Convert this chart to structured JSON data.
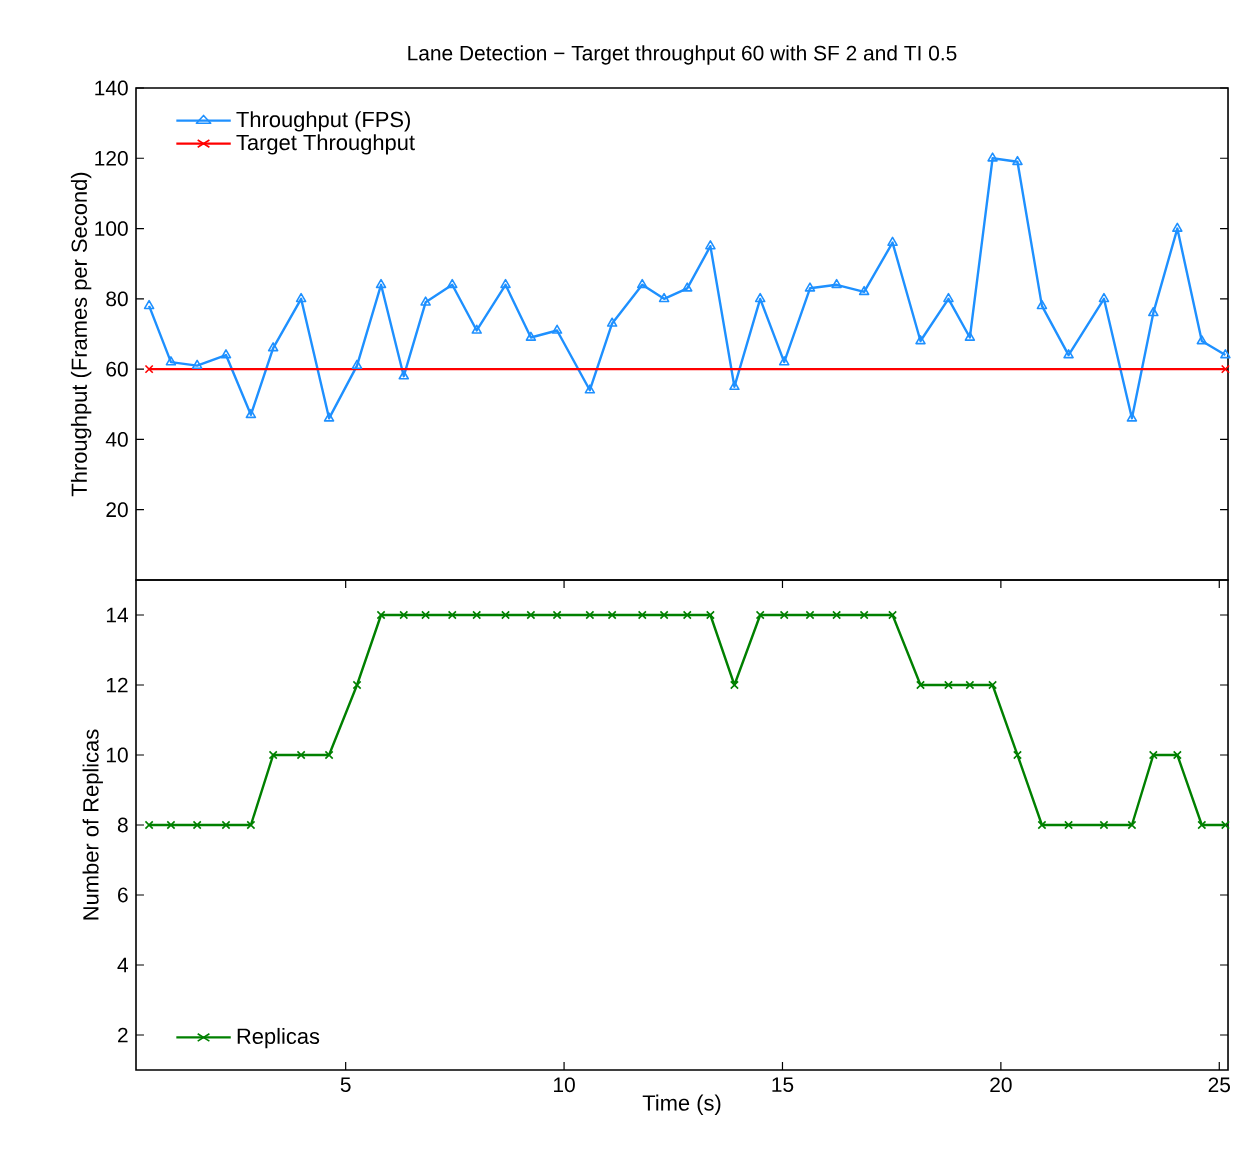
{
  "chart_data": [
    {
      "type": "line",
      "title": "Lane Detection − Target throughput 60 with SF 2 and TI 0.5",
      "ylabel": "Throughput (Frames per Second)",
      "xlim": [
        0.2,
        25.2
      ],
      "ylim": [
        0,
        140
      ],
      "yticks": [
        20,
        40,
        60,
        80,
        100,
        120,
        140
      ],
      "tick_labels": "y",
      "legend": "top left",
      "line_style": "solid",
      "series": [
        {
          "name": "Throughput (FPS)",
          "color": "#1e90ff",
          "marker": "triangle",
          "x": [
            0.5,
            1.0,
            1.6,
            2.26,
            2.83,
            3.34,
            3.98,
            4.62,
            5.26,
            5.81,
            6.33,
            6.83,
            7.44,
            8.0,
            8.66,
            9.24,
            9.84,
            10.59,
            11.1,
            11.79,
            12.29,
            12.82,
            13.35,
            13.9,
            14.49,
            15.04,
            15.63,
            16.24,
            16.87,
            17.52,
            18.16,
            18.8,
            19.29,
            19.81,
            20.38,
            20.94,
            21.55,
            22.36,
            23.0,
            23.49,
            24.04,
            24.6,
            25.14
          ],
          "values": [
            78,
            62,
            61,
            64,
            47,
            66,
            80,
            46,
            61,
            84,
            58,
            79,
            84,
            71,
            84,
            69,
            71,
            54,
            73,
            84,
            80,
            83,
            95,
            55,
            80,
            62,
            83,
            84,
            82,
            96,
            68,
            80,
            69,
            120,
            119,
            78,
            64,
            80,
            46,
            76,
            100,
            68,
            64
          ]
        },
        {
          "name": "Target Throughput",
          "color": "#ff0000",
          "marker": "cross",
          "x": [
            0.5,
            25.14
          ],
          "values": [
            60,
            60
          ]
        }
      ]
    },
    {
      "type": "line",
      "xlabel": "Time (s)",
      "ylabel": "Number of Replicas",
      "xlim": [
        0.2,
        25.2
      ],
      "ylim": [
        1,
        15
      ],
      "xticks": [
        5,
        10,
        15,
        20,
        25
      ],
      "yticks": [
        2,
        4,
        6,
        8,
        10,
        12,
        14
      ],
      "legend": "bottom left",
      "line_style": "solid",
      "series": [
        {
          "name": "Replicas",
          "color": "#008000",
          "marker": "cross",
          "x": [
            0.5,
            1.0,
            1.6,
            2.26,
            2.83,
            3.34,
            3.98,
            4.62,
            5.26,
            5.81,
            6.33,
            6.83,
            7.44,
            8.0,
            8.66,
            9.24,
            9.84,
            10.59,
            11.1,
            11.79,
            12.29,
            12.82,
            13.35,
            13.9,
            14.49,
            15.04,
            15.63,
            16.24,
            16.87,
            17.52,
            18.16,
            18.8,
            19.29,
            19.81,
            20.38,
            20.94,
            21.55,
            22.36,
            23.0,
            23.49,
            24.04,
            24.6,
            25.14
          ],
          "values": [
            8,
            8,
            8,
            8,
            8,
            10,
            10,
            10,
            12,
            14,
            14,
            14,
            14,
            14,
            14,
            14,
            14,
            14,
            14,
            14,
            14,
            14,
            14,
            12,
            14,
            14,
            14,
            14,
            14,
            14,
            12,
            12,
            12,
            12,
            10,
            8,
            8,
            8,
            8,
            10,
            10,
            8,
            8
          ]
        }
      ]
    }
  ]
}
